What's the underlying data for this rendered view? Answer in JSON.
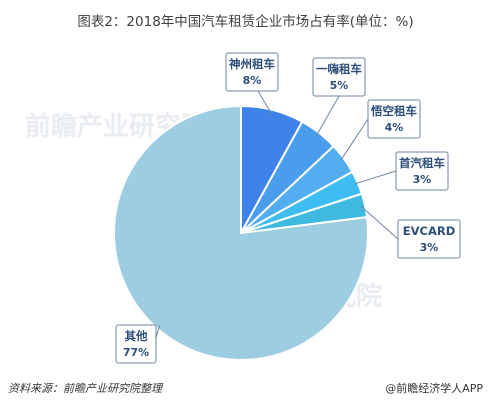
{
  "title": "图表2：2018年中国汽车租赁企业市场占有率(单位：%)",
  "source": "资料来源：前瞻产业研究院整理",
  "credit": "@前瞻经济学人APP",
  "watermark": "前瞻产业研究院",
  "chart_data": {
    "type": "pie",
    "title": "图表2：2018年中国汽车租赁企业市场占有率(单位：%)",
    "unit": "%",
    "slices": [
      {
        "name": "神州租车",
        "value": 8,
        "label": "8%",
        "color": "#3f83e8"
      },
      {
        "name": "一嗨租车",
        "value": 5,
        "label": "5%",
        "color": "#4a9cec"
      },
      {
        "name": "悟空租车",
        "value": 4,
        "label": "4%",
        "color": "#52aef0"
      },
      {
        "name": "首汽租车",
        "value": 3,
        "label": "3%",
        "color": "#3dbdf2"
      },
      {
        "name": "EVCARD",
        "value": 3,
        "label": "3%",
        "color": "#3eb9e0"
      },
      {
        "name": "其他",
        "value": 77,
        "label": "77%",
        "color": "#9ccde0"
      }
    ]
  }
}
